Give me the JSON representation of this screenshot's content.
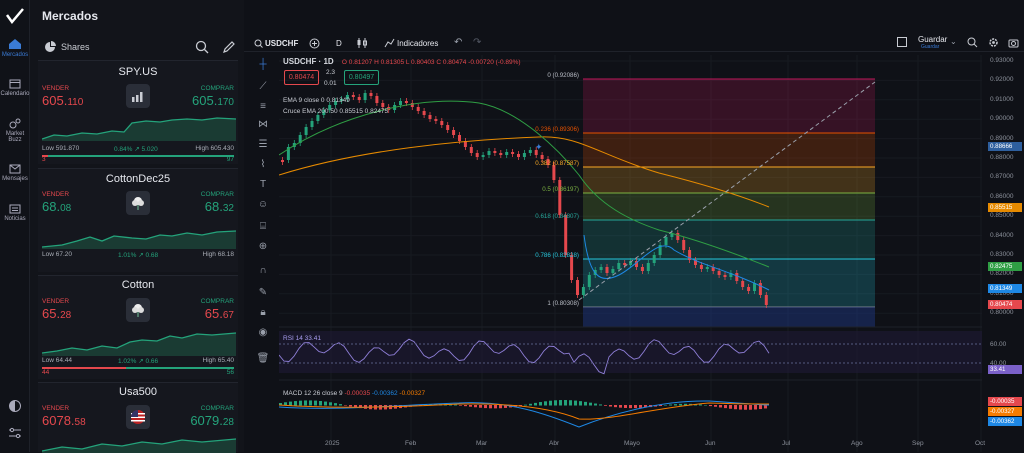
{
  "app": {
    "title": "Mercados"
  },
  "rail": [
    {
      "label": "Mercados",
      "icon": "home-icon"
    },
    {
      "label": "Calendario",
      "icon": "calendar-icon"
    },
    {
      "label": "Market Buzz",
      "icon": "buzz-icon"
    },
    {
      "label": "Mensajes",
      "icon": "mail-icon"
    },
    {
      "label": "Noticias",
      "icon": "news-icon"
    }
  ],
  "watchlist": {
    "title": "Shares",
    "cards": [
      {
        "symbol": "SPY.US",
        "sell_label": "VENDER",
        "buy_label": "COMPRAR",
        "sell_main": "605.",
        "sell_frac": "110",
        "buy_main": "605.",
        "buy_frac": "170",
        "low": "Low 591.870",
        "change": "0.84%",
        "change2": "5.020",
        "high": "High 605.430",
        "low_count": "3",
        "high_count": "97",
        "logo": "bars-icon",
        "ratio": 0.97
      },
      {
        "symbol": "CottonDec25",
        "sell_label": "VENDER",
        "buy_label": "COMPRAR",
        "sell_main": "68.",
        "sell_frac": "08",
        "buy_main": "68.",
        "buy_frac": "32",
        "low": "Low 67.20",
        "change": "1.01%",
        "change2": "0.68",
        "high": "High 68.18",
        "low_count": "",
        "high_count": "",
        "logo": "cotton-icon",
        "ratio": 0.9
      },
      {
        "symbol": "Cotton",
        "sell_label": "VENDER",
        "buy_label": "COMPRAR",
        "sell_main": "65.",
        "sell_frac": "28",
        "buy_main": "65.",
        "buy_frac": "67",
        "low": "Low 64.44",
        "change": "1.02%",
        "change2": "0.66",
        "high": "High 65.40",
        "low_count": "44",
        "high_count": "56",
        "logo": "cotton-icon",
        "ratio": 0.56
      },
      {
        "symbol": "Usa500",
        "sell_label": "VENDER",
        "buy_label": "COMPRAR",
        "sell_main": "6078.",
        "sell_frac": "58",
        "buy_main": "6079.",
        "buy_frac": "28",
        "logo": "us-flag-icon"
      }
    ]
  },
  "toolbar": {
    "symbol": "USDCHF",
    "interval": "D",
    "indicators": "Indicadores",
    "save": "Guardar",
    "save_sub": "Guardar"
  },
  "legend": {
    "title": "USDCHF · 1D",
    "ohlc": "O 0.81207  H 0.81305  L 0.80403  C 0.80474  -0.00720 (-0.89%)",
    "sell_box": "0.80474",
    "spread": "2.3",
    "lot": "0.01",
    "buy_box": "0.80497",
    "ema": "EMA 9 close 0  0.81349",
    "cross_ema": "Cruce EMA 200 50  0.85515  0.82475",
    "rsi": "RSI 14  33.41",
    "macd": "MACD 12 26 close 9",
    "macd_vals": [
      "-0.00035",
      "-0.00362",
      "-0.00327"
    ]
  },
  "fib_levels": [
    {
      "label": "0 (0.92086)",
      "color": "#c2185b"
    },
    {
      "label": "0.236 (0.89306)",
      "color": "#e65100"
    },
    {
      "label": "0.382 (0.87587)",
      "color": "#f9a825"
    },
    {
      "label": "0.5 (0.86197)",
      "color": "#7cb342"
    },
    {
      "label": "0.618 (0.84807)",
      "color": "#26a69a"
    },
    {
      "label": "0.786 (0.82828)",
      "color": "#26c6da"
    },
    {
      "label": "1 (0.80308)",
      "color": "#7a7f8c"
    }
  ],
  "yaxis": {
    "labels": [
      "0.93000",
      "0.92000",
      "0.91000",
      "0.90000",
      "0.89000",
      "0.88000",
      "0.87000",
      "0.86000",
      "0.85000",
      "0.84000",
      "0.83000",
      "0.82000",
      "0.81000",
      "0.80000"
    ],
    "tags": [
      {
        "text": "0.88666",
        "color": "#2e5f9e"
      },
      {
        "text": "0.85515",
        "color": "#e68a00"
      },
      {
        "text": "0.82475",
        "color": "#2f9e44"
      },
      {
        "text": "0.81349",
        "color": "#1e88e5"
      },
      {
        "text": "0.80474",
        "color": "#e5484d"
      }
    ],
    "rsi_labels": [
      "60.00",
      "40.00"
    ],
    "rsi_tag": "33.41",
    "macd_tags": [
      {
        "text": "-0.00035",
        "color": "#e5484d"
      },
      {
        "text": "-0.00327",
        "color": "#f57c00"
      },
      {
        "text": "-0.00362",
        "color": "#1e88e5"
      }
    ]
  },
  "xaxis": [
    "2025",
    "Feb",
    "Mar",
    "Abr",
    "Mayo",
    "Jun",
    "Jul",
    "Ago",
    "Sep",
    "Oct"
  ],
  "colors": {
    "up": "#24a37b",
    "down": "#e5484d",
    "bg": "#0f1117",
    "accent": "#3a7bd5"
  }
}
